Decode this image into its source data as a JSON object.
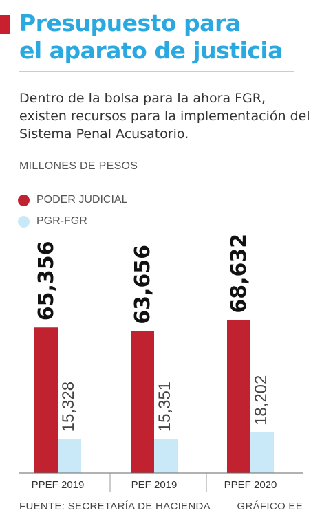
{
  "title_line1": "Presupuesto para",
  "title_line2": "el aparato de justicia",
  "subtitle": "Dentro de la bolsa para la ahora FGR, existen recursos para la implementación del Sistema Penal Acusatorio.",
  "units": "MILLONES DE PESOS",
  "source": "FUENTE: SECRETARÍA DE HACIENDA",
  "credit": "GRÁFICO EE",
  "colors": {
    "accent": "#c8202f",
    "title": "#2aa8e0",
    "poder_judicial": "#c0232f",
    "pgr_fgr": "#c9e9f8"
  },
  "chart_data": {
    "type": "bar",
    "categories": [
      "PPEF 2019",
      "PEF 2019",
      "PPEF 2020"
    ],
    "series": [
      {
        "name": "PODER JUDICIAL",
        "values": [
          65356,
          63656,
          68632
        ],
        "labels": [
          "65,356",
          "63,656",
          "68,632"
        ]
      },
      {
        "name": "PGR-FGR",
        "values": [
          15328,
          15351,
          18202
        ],
        "labels": [
          "15,328",
          "15,351",
          "18,202"
        ]
      }
    ],
    "legend_position": "top-left",
    "grid": false
  }
}
